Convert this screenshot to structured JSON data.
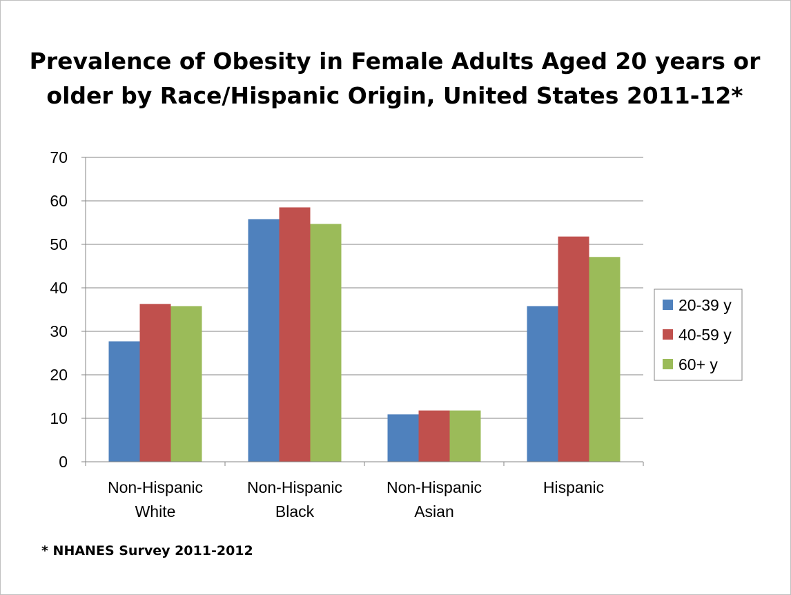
{
  "chart_data": {
    "type": "bar",
    "title": "Prevalence of Obesity in Female Adults Aged 20 years or older by Race/Hispanic Origin, United States 2011-12*",
    "categories": [
      [
        "Non-Hispanic",
        "White"
      ],
      [
        "Non-Hispanic",
        "Black"
      ],
      [
        "Non-Hispanic",
        "Asian"
      ],
      [
        "Hispanic"
      ]
    ],
    "series": [
      {
        "name": "20-39 y",
        "color": "#4F81BD",
        "values": [
          27.7,
          55.8,
          10.9,
          35.8
        ]
      },
      {
        "name": "40-59 y",
        "color": "#C0504D",
        "values": [
          36.3,
          58.5,
          11.8,
          51.8
        ]
      },
      {
        "name": "60+ y",
        "color": "#9BBB59",
        "values": [
          35.8,
          54.7,
          11.8,
          47.1
        ]
      }
    ],
    "ylim": [
      0,
      70
    ],
    "yticks": [
      0,
      10,
      20,
      30,
      40,
      50,
      60,
      70
    ],
    "xlabel": "",
    "ylabel": "",
    "grid": true,
    "legend": "right"
  },
  "footnote": "* NHANES Survey 2011-2012"
}
